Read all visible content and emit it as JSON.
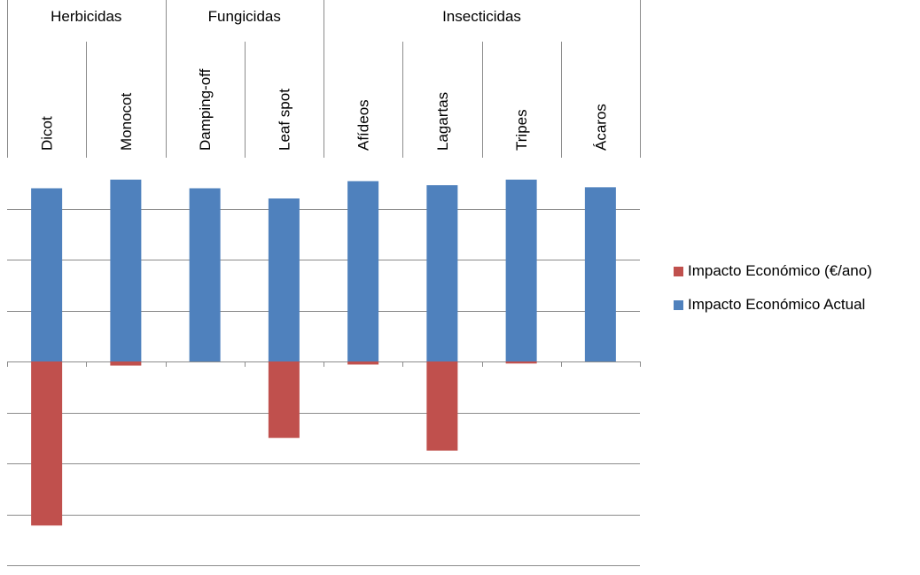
{
  "chart_data": {
    "type": "bar",
    "stacked": true,
    "title": "",
    "xlabel": "",
    "ylabel": "",
    "ylim": [
      -4,
      4
    ],
    "y_gridlines": [
      -4,
      -3,
      -2,
      -1,
      0,
      1,
      2,
      3
    ],
    "y_tick_labels_visible": false,
    "groups": [
      {
        "label": "Herbicidas",
        "span": 2
      },
      {
        "label": "Fungicidas",
        "span": 2
      },
      {
        "label": "Insecticidas",
        "span": 4
      }
    ],
    "categories": [
      "Dicot",
      "Monocot",
      "Damping-off",
      "Leaf spot",
      "Afídeos",
      "Lagartas",
      "Tripes",
      "Ácaros"
    ],
    "series": [
      {
        "name": "Impacto Económico (€/ano)",
        "color": "#C0504D",
        "values": [
          -3.22,
          -0.08,
          0,
          -1.5,
          -0.06,
          -1.75,
          -0.04,
          0
        ]
      },
      {
        "name": "Impacto Económico Actual",
        "color": "#4F81BD",
        "values": [
          3.4,
          3.57,
          3.4,
          3.2,
          3.54,
          3.46,
          3.57,
          3.42
        ]
      }
    ],
    "legend_position": "right",
    "grid": true
  }
}
